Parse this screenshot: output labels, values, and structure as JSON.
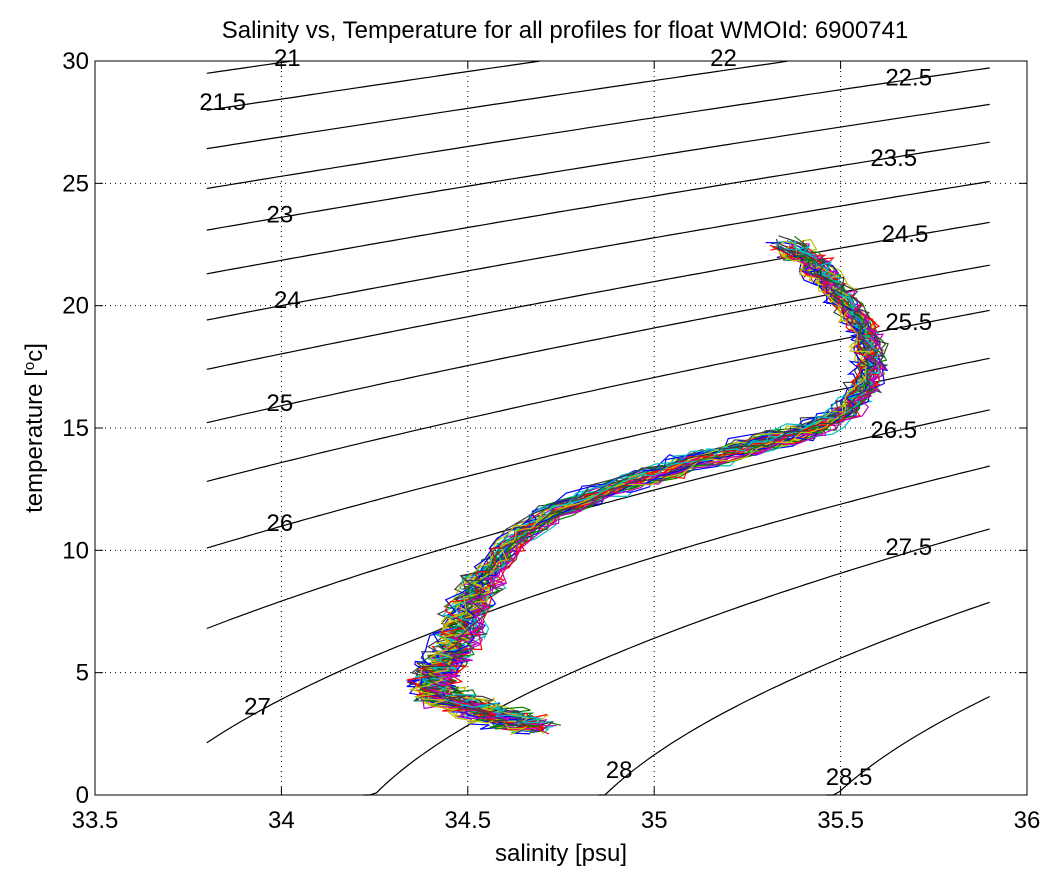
{
  "chart_data": {
    "type": "line",
    "title": "Salinity vs, Temperature for all profiles for float WMOId: 6900741",
    "xlabel": "salinity [psu]",
    "ylabel_main": "temperature [",
    "ylabel_sup": "o",
    "ylabel_end": "c]",
    "xlim": [
      33.5,
      36
    ],
    "ylim": [
      0,
      30
    ],
    "xticks": [
      33.5,
      34,
      34.5,
      35,
      35.5,
      36
    ],
    "xtick_labels": [
      "33.5",
      "34",
      "34.5",
      "35",
      "35.5",
      "36"
    ],
    "yticks": [
      0,
      5,
      10,
      15,
      20,
      25,
      30
    ],
    "ytick_labels": [
      "0",
      "5",
      "10",
      "15",
      "20",
      "25",
      "30"
    ],
    "grid": true,
    "density_contours": {
      "salinity_range": [
        33.8,
        35.9
      ],
      "levels": [
        21,
        21.5,
        22,
        22.5,
        23,
        23.5,
        24,
        24.5,
        25,
        25.5,
        26,
        26.5,
        27,
        27.5,
        28,
        28.5
      ],
      "labels": [
        {
          "text": "21",
          "s": 33.98,
          "t": 29.8
        },
        {
          "text": "22",
          "s": 35.15,
          "t": 29.8
        },
        {
          "text": "22.5",
          "s": 35.62,
          "t": 29.0
        },
        {
          "text": "21.5",
          "s": 33.78,
          "t": 28.0
        },
        {
          "text": "23.5",
          "s": 35.58,
          "t": 25.7
        },
        {
          "text": "23",
          "s": 33.96,
          "t": 23.4
        },
        {
          "text": "24.5",
          "s": 35.61,
          "t": 22.6
        },
        {
          "text": "24",
          "s": 33.98,
          "t": 19.9
        },
        {
          "text": "25.5",
          "s": 35.62,
          "t": 19.0
        },
        {
          "text": "25",
          "s": 33.96,
          "t": 15.7
        },
        {
          "text": "26.5",
          "s": 35.58,
          "t": 14.6
        },
        {
          "text": "26",
          "s": 33.96,
          "t": 10.8
        },
        {
          "text": "27.5",
          "s": 35.62,
          "t": 9.8
        },
        {
          "text": "27",
          "s": 33.9,
          "t": 3.3
        },
        {
          "text": "28",
          "s": 34.87,
          "t": 0.7
        },
        {
          "text": "28.5",
          "s": 35.46,
          "t": 0.4
        }
      ]
    },
    "profile_colors": [
      "#0000ff",
      "#008000",
      "#ff0000",
      "#00bfbf",
      "#bf00bf",
      "#bfbf00",
      "#404040"
    ],
    "profile_count": 42,
    "mean_profile": [
      {
        "s": 34.68,
        "t": 2.8
      },
      {
        "s": 34.6,
        "t": 3.1
      },
      {
        "s": 34.52,
        "t": 3.5
      },
      {
        "s": 34.42,
        "t": 4.0
      },
      {
        "s": 34.4,
        "t": 4.6
      },
      {
        "s": 34.43,
        "t": 5.3
      },
      {
        "s": 34.47,
        "t": 6.2
      },
      {
        "s": 34.5,
        "t": 7.5
      },
      {
        "s": 34.55,
        "t": 9.0
      },
      {
        "s": 34.62,
        "t": 10.3
      },
      {
        "s": 34.72,
        "t": 11.5
      },
      {
        "s": 34.9,
        "t": 12.6
      },
      {
        "s": 35.08,
        "t": 13.5
      },
      {
        "s": 35.25,
        "t": 14.2
      },
      {
        "s": 35.42,
        "t": 14.9
      },
      {
        "s": 35.52,
        "t": 15.8
      },
      {
        "s": 35.57,
        "t": 16.9
      },
      {
        "s": 35.58,
        "t": 18.0
      },
      {
        "s": 35.56,
        "t": 19.0
      },
      {
        "s": 35.52,
        "t": 20.0
      },
      {
        "s": 35.47,
        "t": 21.0
      },
      {
        "s": 35.42,
        "t": 21.8
      },
      {
        "s": 35.35,
        "t": 22.4
      }
    ]
  }
}
